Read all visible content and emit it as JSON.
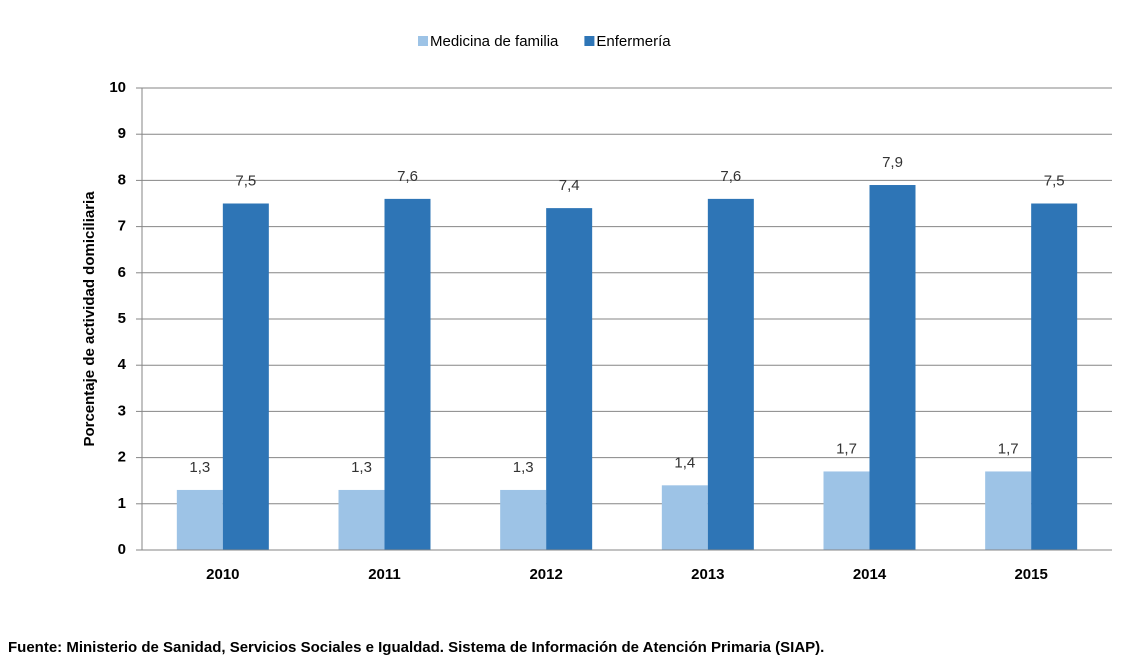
{
  "chart_data": {
    "type": "bar",
    "categories": [
      "2010",
      "2011",
      "2012",
      "2013",
      "2014",
      "2015"
    ],
    "series": [
      {
        "name": "Medicina de familia",
        "color": "#9dc3e6",
        "values": [
          1.3,
          1.3,
          1.3,
          1.4,
          1.7,
          1.7
        ],
        "value_labels": [
          "1,3",
          "1,3",
          "1,3",
          "1,4",
          "1,7",
          "1,7"
        ]
      },
      {
        "name": "Enfermería",
        "color": "#2e75b6",
        "values": [
          7.5,
          7.6,
          7.4,
          7.6,
          7.9,
          7.5
        ],
        "value_labels": [
          "7,5",
          "7,6",
          "7,4",
          "7,6",
          "7,9",
          "7,5"
        ]
      }
    ],
    "ylabel": "Porcentaje de actividad domiciliaria",
    "ylim": [
      0,
      10
    ],
    "yticks": [
      0,
      1,
      2,
      3,
      4,
      5,
      6,
      7,
      8,
      9,
      10
    ],
    "grid": true,
    "legend": "top",
    "source": "Fuente: Ministerio de Sanidad, Servicios Sociales e Igualdad. Sistema de Información de Atención Primaria (SIAP)."
  }
}
